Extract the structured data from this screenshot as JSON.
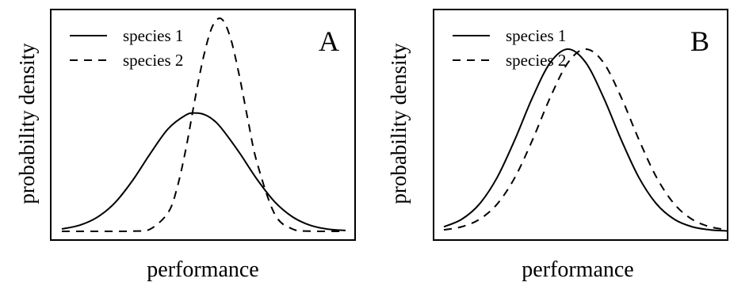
{
  "figure": {
    "background": "#ffffff",
    "ink": "#000000"
  },
  "chart_data": [
    {
      "type": "line",
      "panel_label": "A",
      "xlabel": "performance",
      "ylabel": "probability density",
      "grid": false,
      "axis_ticks": false,
      "legend_position": "top-left",
      "xlim": [
        -4,
        4
      ],
      "ylim": [
        0,
        1.02
      ],
      "series": [
        {
          "name": "species 1",
          "style": "solid",
          "color": "#000000",
          "x": [
            -4,
            -3.5,
            -3,
            -2.5,
            -2,
            -1.5,
            -1,
            -0.5,
            -0.25,
            0,
            0.25,
            0.5,
            1,
            1.5,
            2,
            2.5,
            3,
            3.5,
            4
          ],
          "y": [
            0.011,
            0.028,
            0.065,
            0.132,
            0.235,
            0.359,
            0.472,
            0.535,
            0.544,
            0.538,
            0.515,
            0.474,
            0.363,
            0.24,
            0.136,
            0.067,
            0.028,
            0.01,
            0.004
          ]
        },
        {
          "name": "species 2",
          "style": "dashed",
          "color": "#000000",
          "x": [
            -4,
            -3,
            -2,
            -1.5,
            -1,
            -0.75,
            -0.5,
            -0.25,
            0,
            0.25,
            0.5,
            0.75,
            1,
            1.25,
            1.5,
            2,
            2.5,
            3,
            4
          ],
          "y": [
            0.0,
            0.0,
            0.001,
            0.011,
            0.087,
            0.2,
            0.381,
            0.604,
            0.806,
            0.944,
            0.977,
            0.892,
            0.719,
            0.51,
            0.318,
            0.08,
            0.011,
            0.001,
            0.0
          ]
        }
      ]
    },
    {
      "type": "line",
      "panel_label": "B",
      "xlabel": "performance",
      "ylabel": "probability density",
      "grid": false,
      "axis_ticks": false,
      "legend_position": "top-left",
      "xlim": [
        -4,
        4
      ],
      "ylim": [
        0,
        1.02
      ],
      "series": [
        {
          "name": "species 1",
          "style": "solid",
          "color": "#000000",
          "x": [
            -4,
            -3.5,
            -3,
            -2.5,
            -2,
            -1.5,
            -1,
            -0.5,
            0,
            0.5,
            1,
            1.5,
            2,
            2.5,
            3,
            3.5,
            4
          ],
          "y": [
            0.021,
            0.055,
            0.125,
            0.247,
            0.421,
            0.616,
            0.776,
            0.838,
            0.776,
            0.616,
            0.421,
            0.247,
            0.125,
            0.055,
            0.021,
            0.007,
            0.002
          ]
        },
        {
          "name": "species 2",
          "style": "dashed",
          "color": "#000000",
          "x": [
            -4,
            -3.5,
            -3,
            -2.5,
            -2,
            -1.5,
            -1,
            -0.5,
            0,
            0.5,
            1,
            1.5,
            2,
            2.5,
            3,
            3.5,
            4
          ],
          "y": [
            0.007,
            0.021,
            0.055,
            0.125,
            0.247,
            0.421,
            0.616,
            0.776,
            0.838,
            0.776,
            0.616,
            0.421,
            0.247,
            0.125,
            0.055,
            0.021,
            0.007
          ]
        }
      ]
    }
  ]
}
